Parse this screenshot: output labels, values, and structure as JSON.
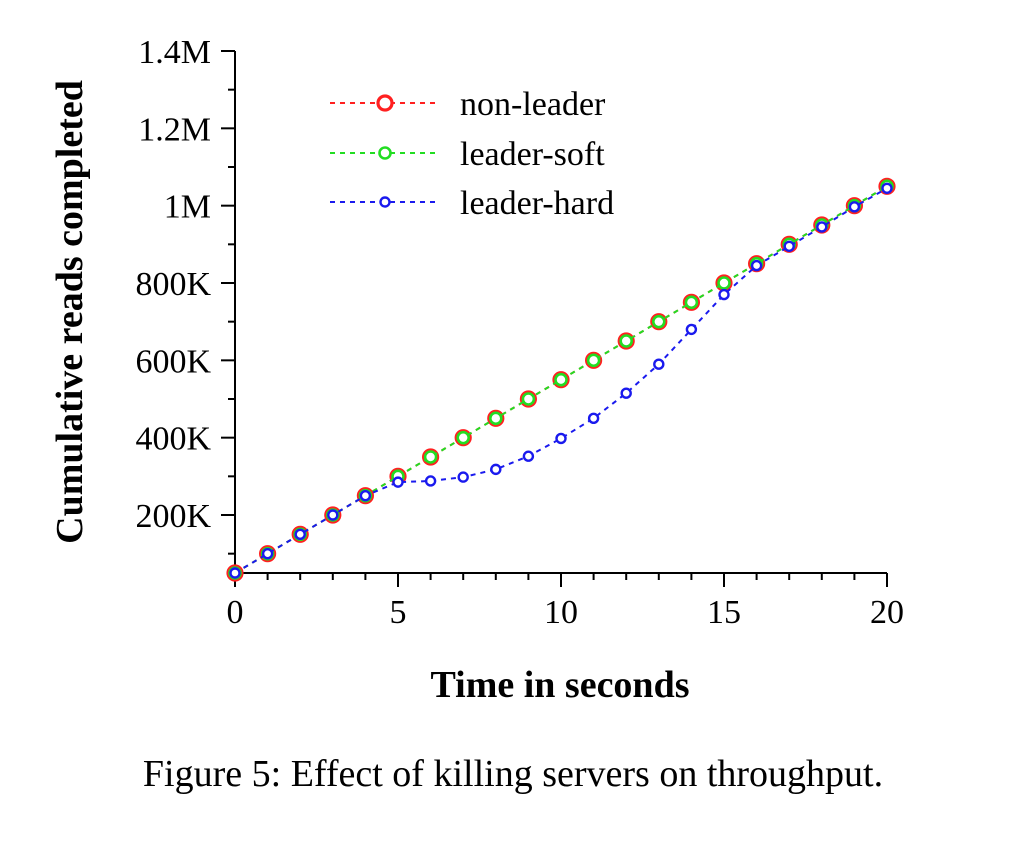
{
  "chart_data": {
    "type": "line",
    "xlabel": "Time in seconds",
    "ylabel": "Cumulative reads completed",
    "xlim": [
      0,
      20
    ],
    "ylim": [
      50000,
      1400000
    ],
    "x_ticks": [
      0,
      5,
      10,
      15,
      20
    ],
    "x_tick_labels": [
      "0",
      "5",
      "10",
      "15",
      "20"
    ],
    "y_ticks": [
      200000,
      400000,
      600000,
      800000,
      1000000,
      1200000,
      1400000
    ],
    "y_tick_labels": [
      "200K",
      "400K",
      "600K",
      "800K",
      "1M",
      "1.2M",
      "1.4M"
    ],
    "grid": false,
    "legend_position": "top-left",
    "x": [
      0,
      1,
      2,
      3,
      4,
      5,
      6,
      7,
      8,
      9,
      10,
      11,
      12,
      13,
      14,
      15,
      16,
      17,
      18,
      19,
      20
    ],
    "series": [
      {
        "name": "non-leader",
        "color": "#ff2020",
        "marker": "large-circle",
        "values": [
          50000,
          100000,
          150000,
          200000,
          250000,
          300000,
          350000,
          400000,
          450000,
          500000,
          550000,
          600000,
          650000,
          700000,
          750000,
          800000,
          850000,
          900000,
          950000,
          1000000,
          1050000
        ]
      },
      {
        "name": "leader-soft",
        "color": "#22dd22",
        "marker": "medium-circle",
        "values": [
          50000,
          100000,
          150000,
          200000,
          250000,
          300000,
          350000,
          400000,
          450000,
          500000,
          550000,
          600000,
          650000,
          700000,
          750000,
          800000,
          850000,
          900000,
          950000,
          1000000,
          1050000
        ]
      },
      {
        "name": "leader-hard",
        "color": "#1a1aee",
        "marker": "small-circle",
        "values": [
          50000,
          100000,
          150000,
          200000,
          250000,
          285000,
          288000,
          298000,
          318000,
          352000,
          398000,
          450000,
          515000,
          590000,
          680000,
          770000,
          845000,
          895000,
          945000,
          997000,
          1045000
        ]
      }
    ]
  },
  "caption": {
    "prefix": "Figure 5:",
    "text": " Effect of killing servers on throughput."
  }
}
